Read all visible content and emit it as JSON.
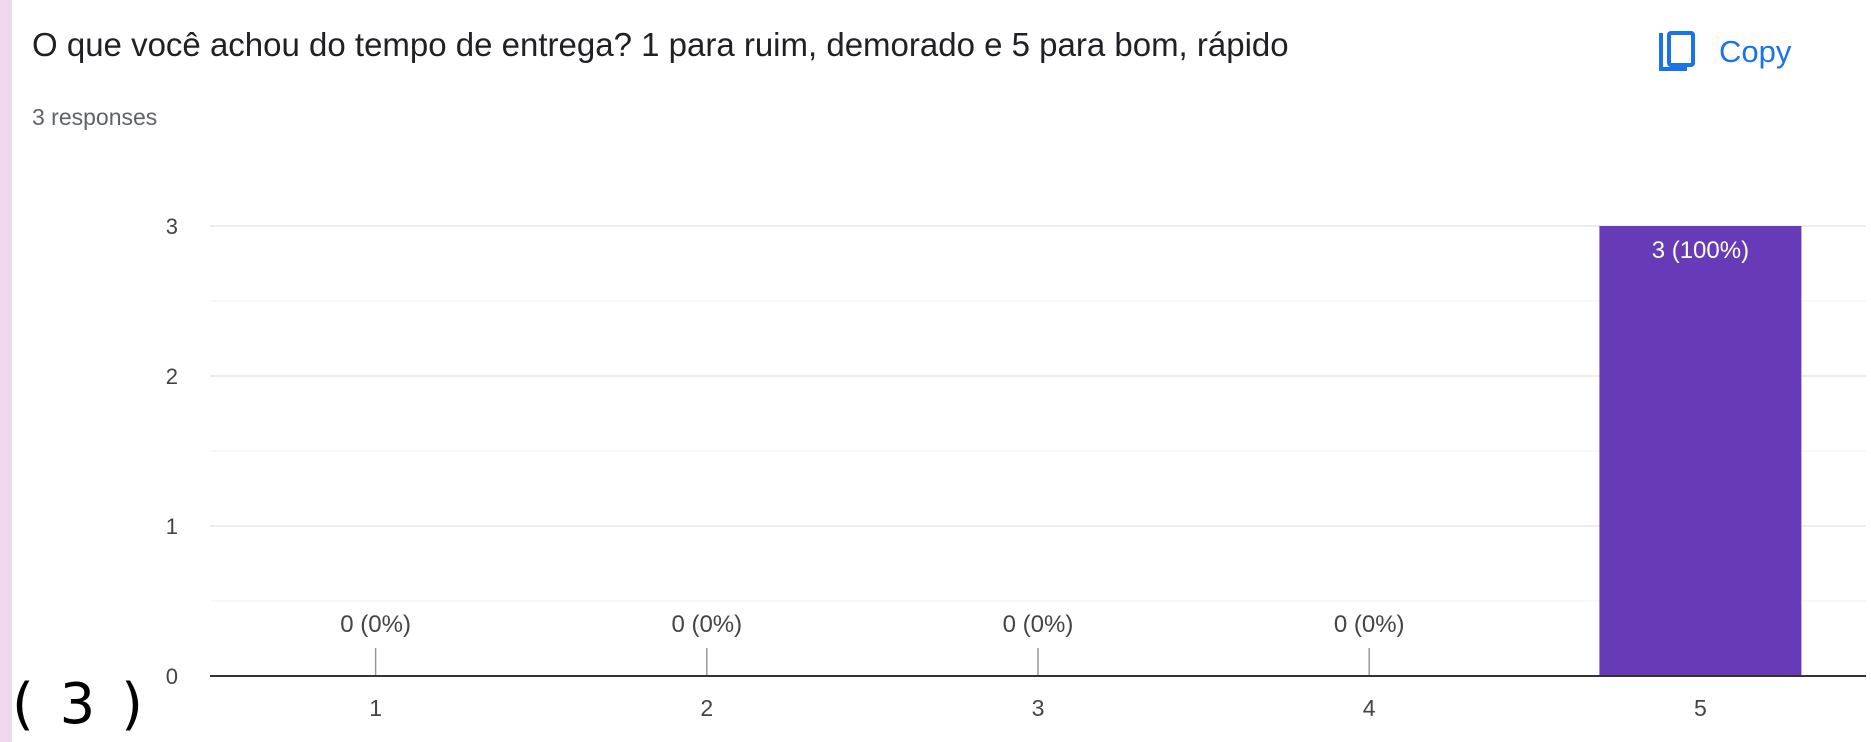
{
  "question": {
    "title": "O que você achou do tempo de entrega? 1 para ruim, demorado e 5 para bom, rápido",
    "copy_label": "Copy",
    "copy_icon": "copy-icon",
    "responses": "3 responses"
  },
  "caption": "( 3 )",
  "colors": {
    "bar": "#673ab7",
    "accent": "#1a73e8",
    "grid": "#e6e6e6",
    "axis": "#333333"
  },
  "chart_data": {
    "type": "bar",
    "categories": [
      "1",
      "2",
      "3",
      "4",
      "5"
    ],
    "values": [
      0,
      0,
      0,
      0,
      3
    ],
    "data_labels": [
      "0 (0%)",
      "0 (0%)",
      "0 (0%)",
      "0 (0%)",
      "3 (100%)"
    ],
    "y_ticks": [
      "0",
      "1",
      "2",
      "3"
    ],
    "ylim": [
      0,
      3
    ],
    "grid": true
  }
}
